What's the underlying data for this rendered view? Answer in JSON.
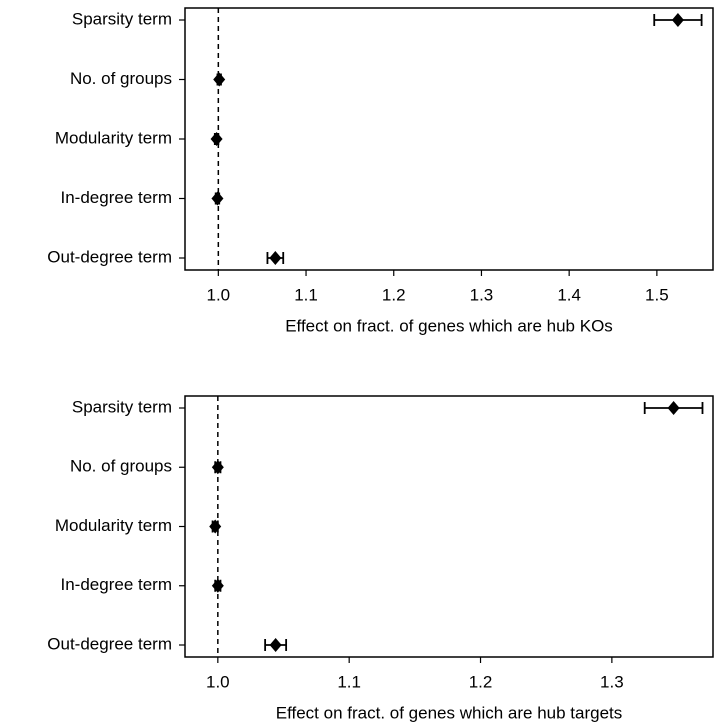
{
  "chart_data": [
    {
      "type": "forest",
      "categories": [
        "Sparsity term",
        "No. of groups",
        "Modularity term",
        "In-degree term",
        "Out-degree term"
      ],
      "values": [
        1.524,
        1.001,
        0.998,
        0.999,
        1.065
      ],
      "errors": [
        0.027,
        0.002,
        0.002,
        0.002,
        0.009
      ],
      "color": "#000000",
      "xlim": [
        0.962,
        1.564
      ],
      "xticks": [
        {
          "value": 1.0,
          "label": "1.0"
        },
        1.1,
        1.2,
        1.3,
        1.4,
        1.5
      ],
      "xlabel": "Effect on fract. of genes which are hub KOs",
      "reference_line": 1
    },
    {
      "type": "forest",
      "categories": [
        "Sparsity term",
        "No. of groups",
        "Modularity term",
        "In-degree term",
        "Out-degree term"
      ],
      "values": [
        1.347,
        1.0,
        0.998,
        1.0,
        1.044
      ],
      "errors": [
        0.022,
        0.002,
        0.002,
        0.002,
        0.008
      ],
      "color": "#000000",
      "xlim": [
        0.975,
        1.377
      ],
      "xticks": [
        {
          "value": 1.0,
          "label": "1.0"
        },
        1.1,
        1.2,
        1.3
      ],
      "xlabel": "Effect on fract. of genes which are hub targets",
      "reference_line": 1
    }
  ]
}
